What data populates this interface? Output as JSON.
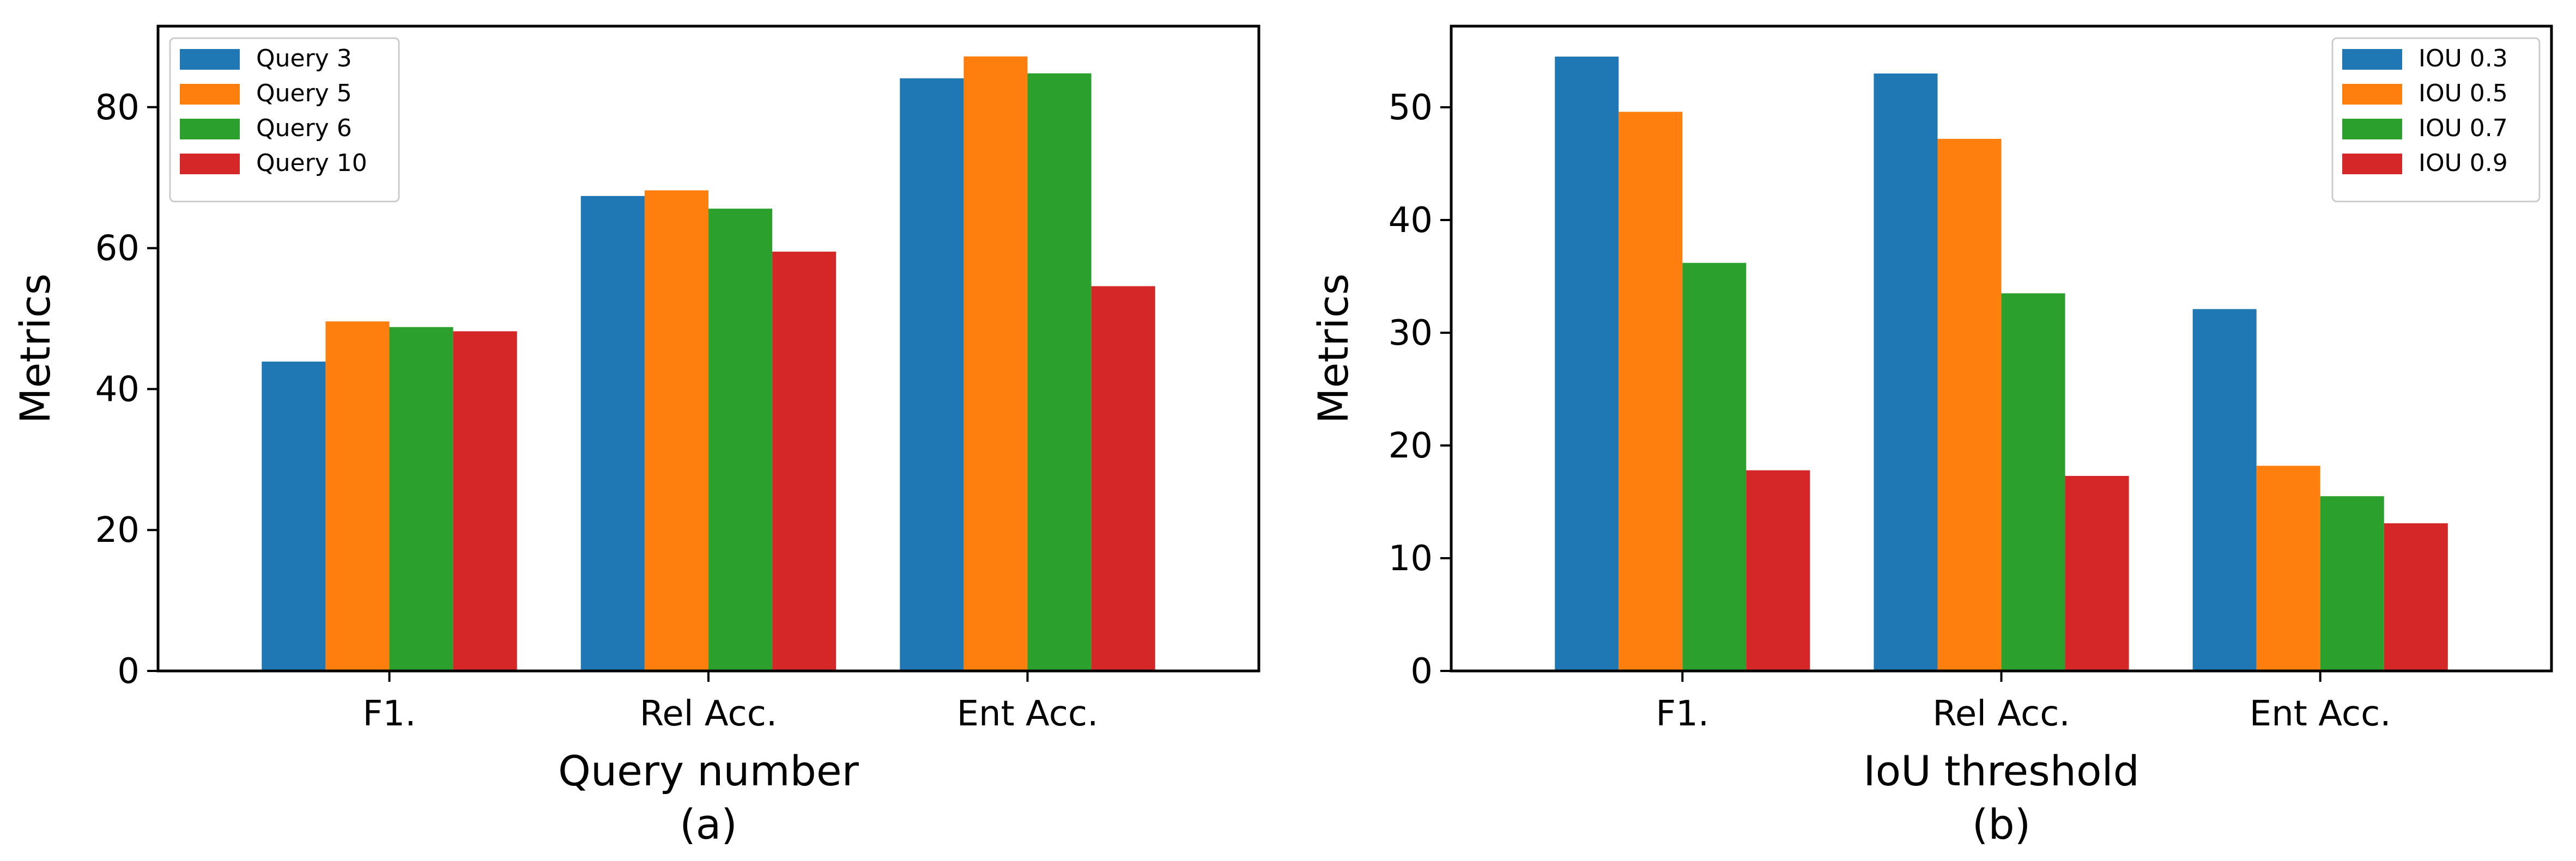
{
  "chart_data": [
    {
      "type": "bar",
      "categories": [
        "F1.",
        "Rel Acc.",
        "Ent Acc."
      ],
      "series": [
        {
          "name": "Query 3",
          "values": [
            43.9,
            67.4,
            84.1
          ]
        },
        {
          "name": "Query 5",
          "values": [
            49.6,
            68.2,
            87.2
          ]
        },
        {
          "name": "Query 6",
          "values": [
            48.8,
            65.6,
            84.8
          ]
        },
        {
          "name": "Query 10",
          "values": [
            48.2,
            59.5,
            54.6
          ]
        }
      ],
      "colors": [
        "#1f77b4",
        "#ff7f0e",
        "#2ca02c",
        "#d62728"
      ],
      "xlabel": "Query number",
      "ylabel": "Metrics",
      "caption": "(a)",
      "ylim": [
        0,
        91.5
      ],
      "yticks": [
        0,
        20,
        40,
        60,
        80
      ],
      "legend_position": "upper left"
    },
    {
      "type": "bar",
      "categories": [
        "F1.",
        "Rel Acc.",
        "Ent Acc."
      ],
      "series": [
        {
          "name": "IOU 0.3",
          "values": [
            54.5,
            53.0,
            32.1
          ]
        },
        {
          "name": "IOU 0.5",
          "values": [
            49.6,
            47.2,
            18.2
          ]
        },
        {
          "name": "IOU 0.7",
          "values": [
            36.2,
            33.5,
            15.5
          ]
        },
        {
          "name": "IOU 0.9",
          "values": [
            17.8,
            17.3,
            13.1
          ]
        }
      ],
      "colors": [
        "#1f77b4",
        "#ff7f0e",
        "#2ca02c",
        "#d62728"
      ],
      "xlabel": "IoU threshold",
      "ylabel": "Metrics",
      "caption": "(b)",
      "ylim": [
        0,
        57.2
      ],
      "yticks": [
        0,
        10,
        20,
        30,
        40,
        50
      ],
      "legend_position": "upper right"
    }
  ]
}
